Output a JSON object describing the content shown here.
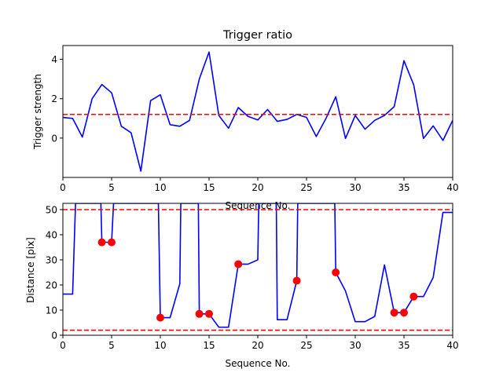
{
  "chart_data": [
    {
      "type": "line",
      "title": "Trigger ratio",
      "xlabel": "Sequence No.",
      "ylabel": "Trigger strength",
      "xlim": [
        0,
        40
      ],
      "ylim": [
        -2.0,
        4.7
      ],
      "xticks": [
        0,
        5,
        10,
        15,
        20,
        25,
        30,
        35,
        40
      ],
      "yticks": [
        0,
        2,
        4
      ],
      "grid": false,
      "series": [
        {
          "x": [
            0,
            1,
            2,
            3,
            4,
            5,
            6,
            7,
            8,
            9,
            10,
            11,
            12,
            13,
            14,
            15,
            16,
            17,
            18,
            19,
            20,
            21,
            22,
            23,
            24,
            25,
            26,
            27,
            28,
            29,
            30,
            31,
            32,
            33,
            34,
            35,
            36,
            37,
            38,
            39,
            40
          ],
          "y": [
            1.05,
            1.0,
            0.05,
            2.0,
            2.72,
            2.3,
            0.6,
            0.27,
            -1.68,
            1.9,
            2.2,
            0.68,
            0.6,
            0.9,
            3.0,
            4.37,
            1.15,
            0.5,
            1.55,
            1.1,
            0.92,
            1.45,
            0.85,
            0.95,
            1.2,
            1.05,
            0.08,
            1.0,
            2.1,
            -0.02,
            1.15,
            0.45,
            0.9,
            1.15,
            1.6,
            3.93,
            2.7,
            -0.02,
            0.62,
            -0.12,
            0.9
          ],
          "color": "#0000ff"
        }
      ],
      "hlines": [
        {
          "y": 1.2,
          "color": "#ff0000",
          "style": "dashed"
        }
      ]
    },
    {
      "type": "line",
      "title": "",
      "xlabel": "Sequence No.",
      "ylabel": "Distance [pix]",
      "xlim": [
        0,
        40
      ],
      "ylim": [
        0,
        52.5
      ],
      "xticks": [
        0,
        5,
        10,
        15,
        20,
        25,
        30,
        35,
        40
      ],
      "yticks": [
        0,
        10,
        20,
        30,
        40,
        50
      ],
      "grid": false,
      "series": [
        {
          "x": [
            0,
            1,
            1.3,
            3.9,
            4,
            5,
            5.2,
            9.8,
            10,
            11,
            12,
            12.1,
            13.9,
            14,
            15,
            16,
            17,
            18,
            19,
            20,
            20.1,
            21.9,
            22,
            23,
            24,
            24.1,
            27.9,
            28,
            29,
            30,
            31,
            32,
            33,
            34,
            35,
            36,
            37,
            38,
            39,
            40
          ],
          "y": [
            16.4,
            16.4,
            52.5,
            52.5,
            37,
            37,
            52.5,
            52.5,
            7,
            7,
            20.5,
            52.5,
            52.5,
            8.5,
            8.5,
            3.2,
            3.2,
            28.3,
            28.3,
            30,
            52.5,
            52.5,
            6.2,
            6.2,
            21.7,
            52.5,
            52.5,
            25,
            17.6,
            5.4,
            5.4,
            7.5,
            28,
            9,
            9,
            15.4,
            15.4,
            23,
            48.9,
            48.9
          ],
          "color": "#0000ff"
        },
        {
          "kind": "markers",
          "x": [
            4,
            5,
            10,
            14,
            15,
            18,
            24,
            28,
            34,
            35,
            36
          ],
          "y": [
            37,
            37,
            7,
            8.5,
            8.5,
            28.3,
            21.7,
            25,
            9,
            9,
            15.4
          ],
          "color": "#ff0000"
        }
      ],
      "hlines": [
        {
          "y": 50,
          "color": "#ff0000",
          "style": "dashed"
        },
        {
          "y": 2,
          "color": "#ff0000",
          "style": "dashed"
        }
      ]
    }
  ]
}
